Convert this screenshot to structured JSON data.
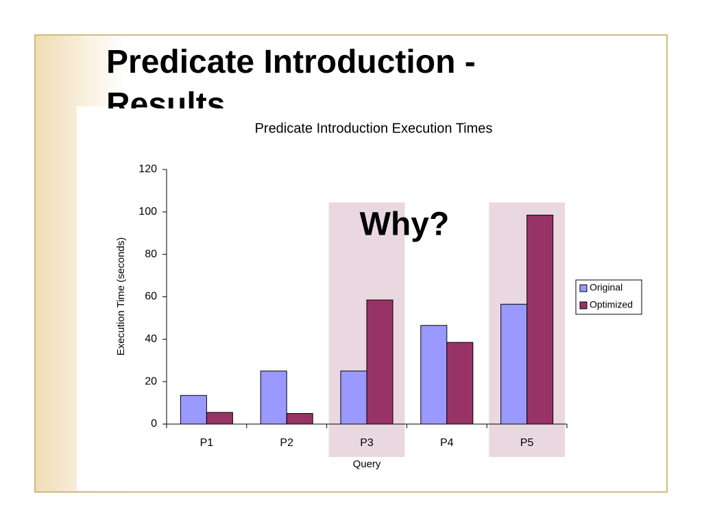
{
  "slide": {
    "title": "Predicate Introduction - Results"
  },
  "chart_data": {
    "type": "bar",
    "title": "Predicate Introduction Execution Times",
    "x_label": "Query",
    "y_label": "Execution Time (seconds)",
    "annotation": "Why?",
    "categories": [
      "P1",
      "P2",
      "P3",
      "P4",
      "P5"
    ],
    "series": [
      {
        "name": "Original",
        "color": "#9999ff",
        "values": [
          13.5,
          25,
          25,
          46.5,
          56.5
        ]
      },
      {
        "name": "Optimized",
        "color": "#993366",
        "values": [
          5.5,
          5,
          58.5,
          38.5,
          98.5
        ]
      }
    ],
    "highlight": [
      2,
      4
    ],
    "highlight_color": "#e8d4de",
    "ylim": [
      0,
      120
    ],
    "yticks": [
      0,
      20,
      40,
      60,
      80,
      100,
      120
    ],
    "legend": "right"
  }
}
